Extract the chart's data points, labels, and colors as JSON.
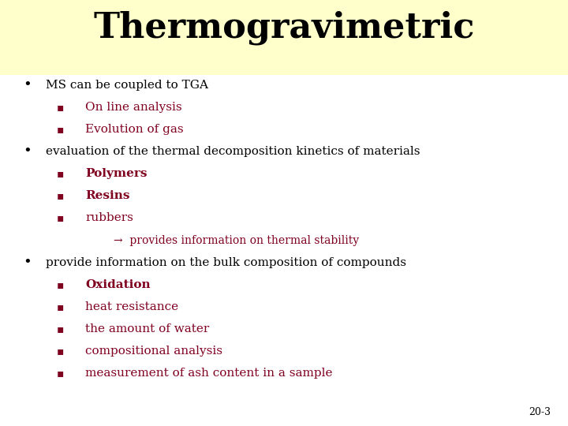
{
  "title": "Thermogravimetric",
  "title_color": "#000000",
  "title_fontsize": 32,
  "title_fontstyle": "bold",
  "header_bg_color": "#FFFFCC",
  "bg_color": "#FFFFFF",
  "bullet_color": "#000000",
  "sub_color": "#800020",
  "slide_number": "20-3",
  "bullet1_main": "MS can be coupled to TGA",
  "bullet1_main_color": "#000000",
  "bullet1_subs": [
    "On line analysis",
    "Evolution of gas"
  ],
  "bullet2_main": "evaluation of the thermal decomposition kinetics of materials",
  "bullet2_main_color": "#000000",
  "bullet2_subs_bold": [
    "Polymers",
    "Resins"
  ],
  "bullet2_subs_normal": [
    "rubbers"
  ],
  "arrow_text": "→  provides information on thermal stability",
  "bullet3_main": "provide information on the bulk composition of compounds",
  "bullet3_main_color": "#000000",
  "bullet3_subs": [
    "Oxidation",
    "heat resistance",
    "the amount of water",
    "compositional analysis",
    "measurement of ash content in a sample"
  ],
  "bullet3_sub_bold": [
    "Oxidation"
  ]
}
